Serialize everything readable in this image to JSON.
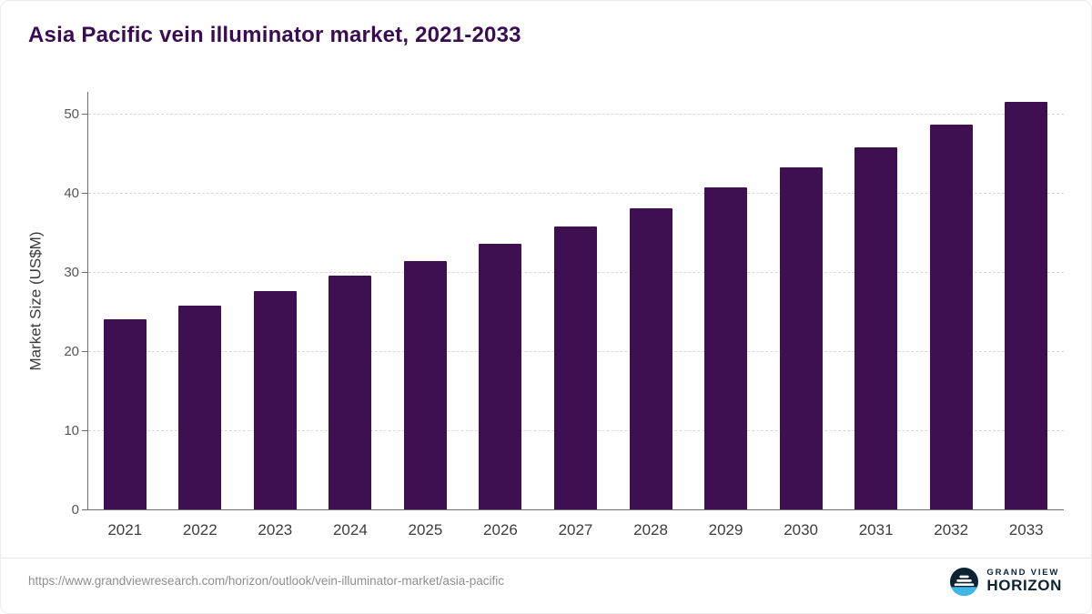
{
  "page": {
    "source_url": "https://www.grandviewresearch.com/horizon/outlook/vein-illuminator-market/asia-pacific"
  },
  "logo": {
    "line1": "GRAND VIEW",
    "line2": "HORIZON"
  },
  "colors": {
    "bar": "#3E1052",
    "title": "#3A0D52",
    "axis": "#6E6E6E",
    "gridline": "#D9D9D9",
    "tick_label": "#555555",
    "x_label": "#3D3D3D",
    "url_text": "#8E8E8E",
    "logo_navy": "#0D2233",
    "logo_blue": "#3FB8E8"
  },
  "chart_data": {
    "type": "bar",
    "title": "Asia Pacific vein illuminator market, 2021-2033",
    "categories": [
      "2021",
      "2022",
      "2023",
      "2024",
      "2025",
      "2026",
      "2027",
      "2028",
      "2029",
      "2030",
      "2031",
      "2032",
      "2033"
    ],
    "values": [
      24.0,
      25.8,
      27.6,
      29.5,
      31.4,
      33.6,
      35.8,
      38.1,
      40.7,
      43.2,
      45.8,
      48.6,
      51.5
    ],
    "xlabel": "",
    "ylabel": "Market Size (US$M)",
    "ylim": [
      0,
      50
    ],
    "yticks": [
      0,
      10,
      20,
      30,
      40,
      50
    ],
    "grid": "horizontal-dashed",
    "legend": "none",
    "bar_color": "#3E1052"
  }
}
